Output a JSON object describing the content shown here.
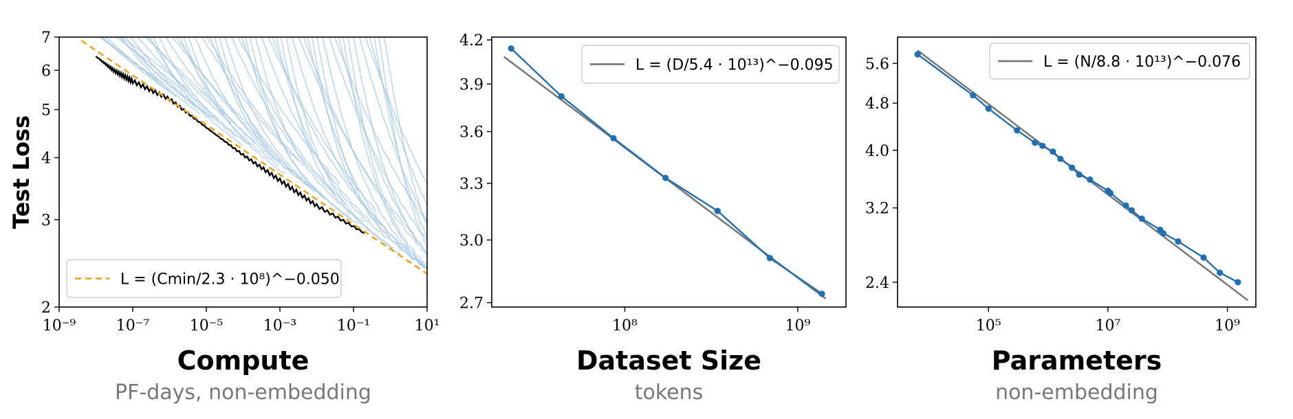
{
  "chart_data": [
    {
      "type": "line",
      "xlabel": "Compute",
      "xsublabel": "PF-days, non-embedding",
      "ylabel": "Test Loss",
      "x_scale": "log",
      "y_scale": "log",
      "xlim": [
        1e-09,
        10
      ],
      "ylim": [
        2,
        7
      ],
      "x_ticks": [
        {
          "value": 1e-09,
          "label": "10⁻⁹"
        },
        {
          "value": 1e-07,
          "label": "10⁻⁷"
        },
        {
          "value": 1e-05,
          "label": "10⁻⁵"
        },
        {
          "value": 0.001,
          "label": "10⁻³"
        },
        {
          "value": 0.1,
          "label": "10⁻¹"
        },
        {
          "value": 10,
          "label": "10¹"
        }
      ],
      "y_ticks": [
        {
          "value": 2,
          "label": "2"
        },
        {
          "value": 3,
          "label": "3"
        },
        {
          "value": 4,
          "label": "4"
        },
        {
          "value": 5,
          "label": "5"
        },
        {
          "value": 6,
          "label": "6"
        },
        {
          "value": 7,
          "label": "7"
        }
      ],
      "legend_position": "bottom-left",
      "legend": [
        {
          "label": "L = (Cmin/2.3 · 10⁸)^−0.050",
          "style": "dashed",
          "color": "#f5a21b"
        }
      ],
      "fit": {
        "coefficient": 230000000.0,
        "exponent": -0.05,
        "x_range": [
          4e-09,
          10
        ],
        "color": "#f5a21b",
        "style": "dashed"
      },
      "frontier": {
        "color": "#000000",
        "x": [
          1e-08,
          3e-08,
          1e-07,
          1e-06,
          1e-05,
          0.0001,
          0.001,
          0.01,
          0.2
        ],
        "y": [
          6.4,
          6.0,
          5.7,
          5.25,
          4.6,
          4.05,
          3.6,
          3.2,
          2.82
        ]
      },
      "training_curves_color": "#a6c8e4"
    },
    {
      "type": "line",
      "xlabel": "Dataset Size",
      "xsublabel": "tokens",
      "x_scale": "log",
      "y_scale": "log",
      "xlim": [
        17000000.0,
        1900000000.0
      ],
      "ylim": [
        2.68,
        4.22
      ],
      "x_ticks": [
        {
          "value": 100000000.0,
          "label": "10⁸"
        },
        {
          "value": 1000000000.0,
          "label": "10⁹"
        }
      ],
      "y_ticks": [
        {
          "value": 2.7,
          "label": "2.7"
        },
        {
          "value": 3.0,
          "label": "3.0"
        },
        {
          "value": 3.3,
          "label": "3.3"
        },
        {
          "value": 3.6,
          "label": "3.6"
        },
        {
          "value": 3.9,
          "label": "3.9"
        },
        {
          "value": 4.2,
          "label": "4.2"
        }
      ],
      "legend_position": "top-right",
      "legend": [
        {
          "label": "L = (D/5.4 · 10¹³)^−0.095",
          "style": "solid",
          "color": "#7a7a7a"
        }
      ],
      "series": [
        {
          "name": "",
          "color": "#1f6fb2",
          "x": [
            22000000.0,
            43000000.0,
            86000000.0,
            172000000.0,
            344000000.0,
            690000000.0,
            1380000000.0
          ],
          "y": [
            4.14,
            3.82,
            3.56,
            3.33,
            3.15,
            2.91,
            2.74
          ]
        }
      ],
      "fit": {
        "coefficient": 54000000000000.0,
        "exponent": -0.095,
        "x_range": [
          20000000.0,
          1450000000.0
        ],
        "color": "#7a7a7a",
        "style": "solid"
      }
    },
    {
      "type": "line",
      "xlabel": "Parameters",
      "xsublabel": "non-embedding",
      "x_scale": "log",
      "y_scale": "log",
      "xlim": [
        3000,
        3000000000.0
      ],
      "ylim": [
        2.18,
        6.2
      ],
      "x_ticks": [
        {
          "value": 100000.0,
          "label": "10⁵"
        },
        {
          "value": 10000000.0,
          "label": "10⁷"
        },
        {
          "value": 1000000000.0,
          "label": "10⁹"
        }
      ],
      "y_ticks": [
        {
          "value": 2.4,
          "label": "2.4"
        },
        {
          "value": 3.2,
          "label": "3.2"
        },
        {
          "value": 4.0,
          "label": "4.0"
        },
        {
          "value": 4.8,
          "label": "4.8"
        },
        {
          "value": 5.6,
          "label": "5.6"
        }
      ],
      "legend_position": "top-right",
      "legend": [
        {
          "label": "L = (N/8.8 · 10¹³)^−0.076",
          "style": "solid",
          "color": "#7a7a7a"
        }
      ],
      "series": [
        {
          "name": "",
          "color": "#1f6fb2",
          "x": [
            6500,
            55000,
            100000,
            300000,
            600000,
            800000,
            1200000.0,
            1600000.0,
            2500000.0,
            3300000.0,
            5000000.0,
            10000000.0,
            11000000.0,
            20000000.0,
            25000000.0,
            37000000.0,
            75000000.0,
            85000000.0,
            150000000.0,
            400000000.0,
            750000000.0,
            1500000000.0
          ],
          "y": [
            5.8,
            4.95,
            4.7,
            4.32,
            4.12,
            4.07,
            3.98,
            3.87,
            3.74,
            3.64,
            3.57,
            3.42,
            3.39,
            3.23,
            3.17,
            3.07,
            2.94,
            2.9,
            2.81,
            2.64,
            2.49,
            2.4
          ]
        }
      ],
      "fit": {
        "coefficient": 88000000000000.0,
        "exponent": -0.076,
        "x_range": [
          6500,
          2200000000.0
        ],
        "color": "#7a7a7a",
        "style": "solid"
      }
    }
  ]
}
